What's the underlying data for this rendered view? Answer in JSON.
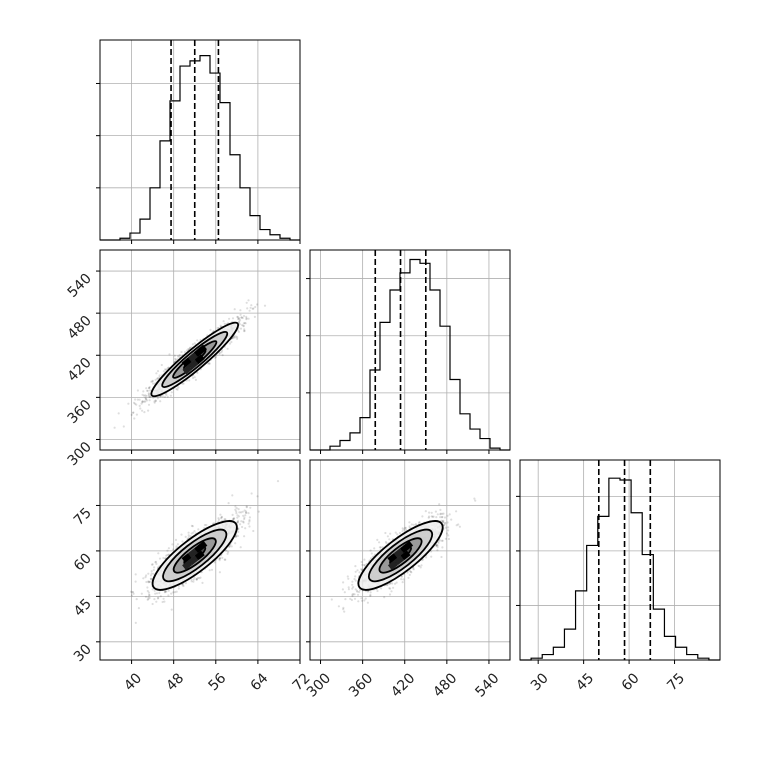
{
  "chart_data": {
    "type": "corner",
    "title": "",
    "parameters": [
      {
        "range": [
          34,
          72
        ],
        "ticks": [
          40,
          48,
          56,
          64,
          72
        ],
        "quantiles": [
          47.5,
          52.0,
          56.5
        ],
        "hist_ymax": 1.15,
        "hist_counts": [
          0.0,
          0.0,
          0.01,
          0.04,
          0.12,
          0.3,
          0.57,
          0.8,
          1.0,
          1.03,
          1.06,
          0.96,
          0.79,
          0.49,
          0.3,
          0.14,
          0.06,
          0.03,
          0.01,
          0.0
        ]
      },
      {
        "range": [
          285,
          570
        ],
        "ticks": [
          300,
          360,
          420,
          480,
          540
        ],
        "quantiles": [
          378,
          414,
          450
        ],
        "hist_ymax": 1.05,
        "hist_counts": [
          0.0,
          0.0,
          0.02,
          0.05,
          0.09,
          0.17,
          0.42,
          0.67,
          0.84,
          0.93,
          1.0,
          0.98,
          0.84,
          0.65,
          0.37,
          0.19,
          0.11,
          0.06,
          0.01,
          0.0
        ]
      },
      {
        "range": [
          24,
          90
        ],
        "ticks": [
          30,
          45,
          60,
          75
        ],
        "quantiles": [
          50,
          58.5,
          67
        ],
        "hist_ymax": 1.1,
        "hist_counts": [
          0.0,
          0.01,
          0.03,
          0.07,
          0.17,
          0.38,
          0.63,
          0.79,
          1.0,
          0.99,
          0.81,
          0.58,
          0.28,
          0.13,
          0.07,
          0.03,
          0.01,
          0.0
        ]
      }
    ],
    "pairs": [
      {
        "row": 1,
        "col": 0,
        "center": [
          52.0,
          414
        ],
        "angle_deg": 40.0,
        "sigma_major": 28.0,
        "sigma_minor": 5.0,
        "scatter_extent": [
          [
            35,
            292
          ],
          [
            70,
            555
          ]
        ]
      },
      {
        "row": 2,
        "col": 0,
        "center": [
          52.0,
          58.5
        ],
        "angle_deg": 38.0,
        "sigma_major": 26.0,
        "sigma_minor": 8.0,
        "scatter_extent": [
          [
            36,
            28
          ],
          [
            68,
            86
          ]
        ]
      },
      {
        "row": 2,
        "col": 1,
        "center": [
          414,
          58.5
        ],
        "angle_deg": 38.0,
        "sigma_major": 26.0,
        "sigma_minor": 8.0,
        "scatter_extent": [
          [
            290,
            28
          ],
          [
            555,
            86
          ]
        ]
      }
    ],
    "contour_levels_sigma": [
      0.5,
      1.0,
      1.5,
      2.0
    ],
    "grid": true,
    "legend": false
  }
}
